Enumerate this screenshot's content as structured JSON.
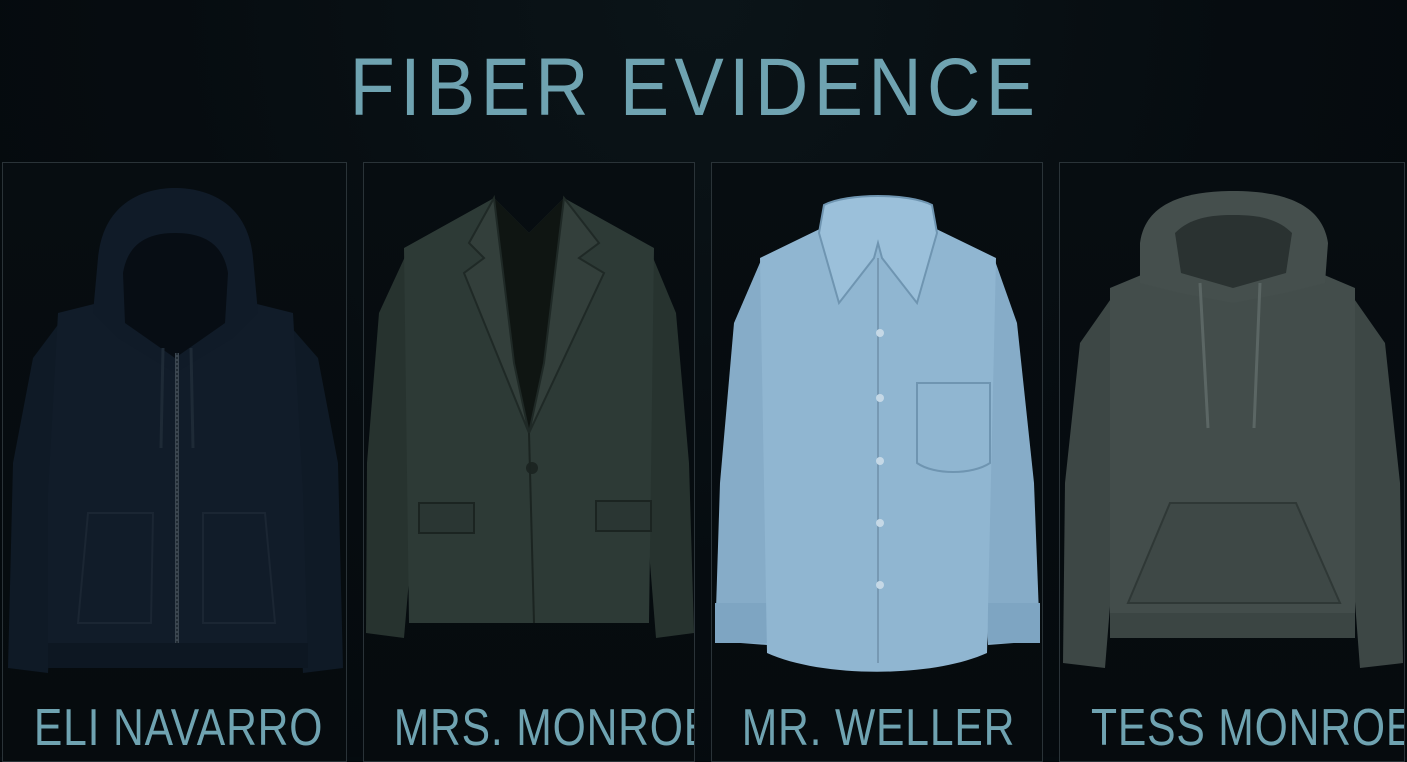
{
  "title": "FIBER EVIDENCE",
  "suspects": [
    {
      "name": "ELI NAVARRO",
      "garment": "zip-hoodie-icon",
      "color": "#0f1a26"
    },
    {
      "name": "MRS. MONROE",
      "garment": "blazer-icon",
      "color": "#2b3734"
    },
    {
      "name": "MR. WELLER",
      "garment": "dress-shirt-icon",
      "color": "#8fb4cf"
    },
    {
      "name": "TESS MONROE",
      "garment": "pullover-hoodie-icon",
      "color": "#414b49"
    }
  ],
  "colors": {
    "accent": "#6fa3b1",
    "background": "#050b0f",
    "panel_border": "#2a3338"
  }
}
